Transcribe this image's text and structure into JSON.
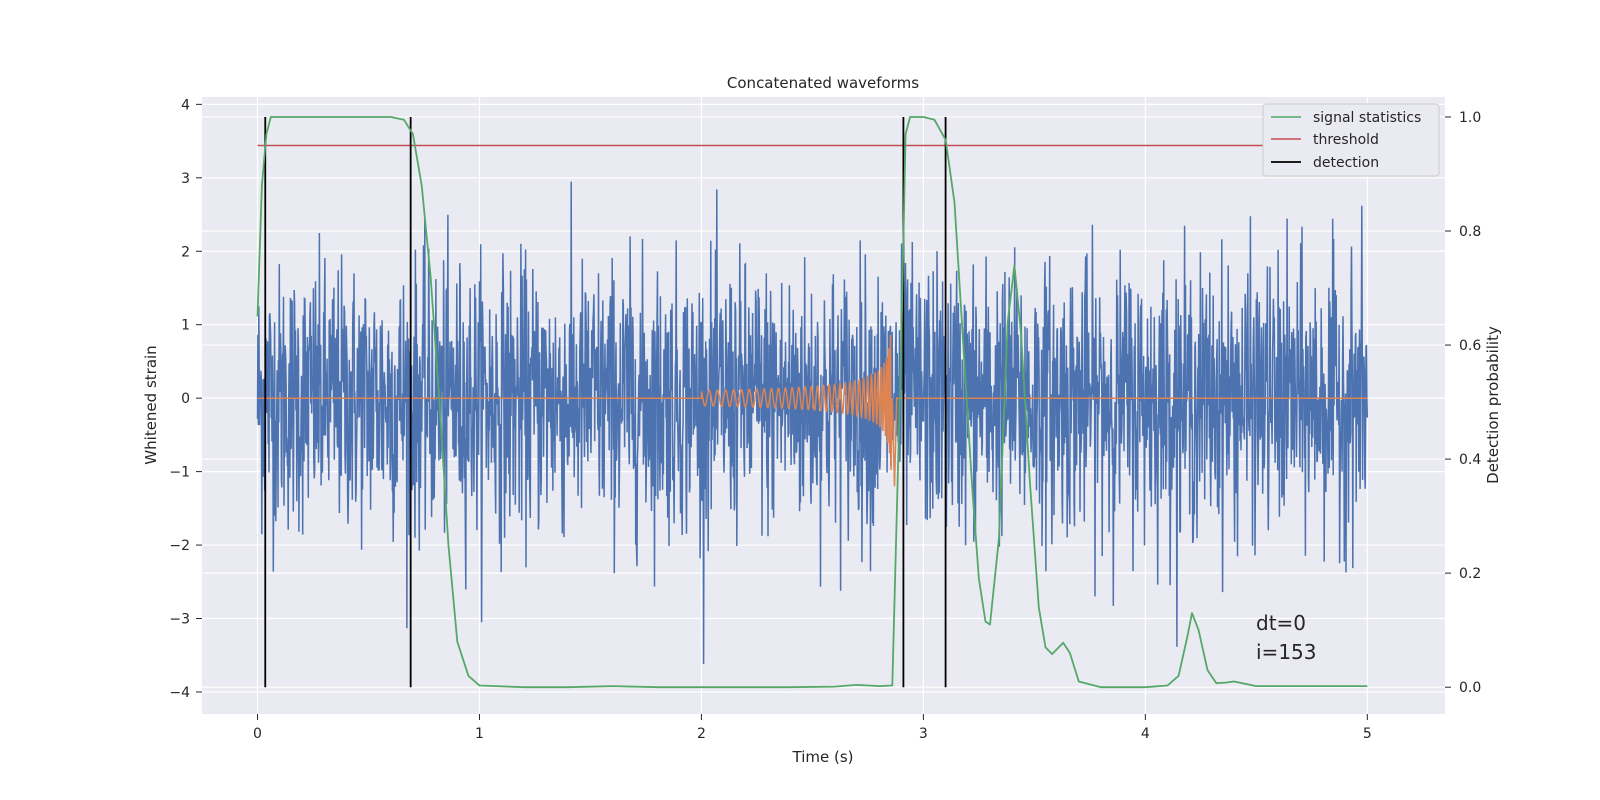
{
  "chart_data": {
    "type": "line",
    "title": "Concatenated waveforms",
    "xlabel": "Time (s)",
    "ylabel": "Whitened strain",
    "y2label": "Detection probability",
    "xlim": [
      -0.25,
      5.35
    ],
    "ylim": [
      -4.3,
      4.1
    ],
    "y2lim": [
      -0.047,
      1.035
    ],
    "xticks": [
      0,
      1,
      2,
      3,
      4,
      5
    ],
    "yticks": [
      -4,
      -3,
      -2,
      -1,
      0,
      1,
      2,
      3,
      4
    ],
    "y2ticks": [
      0.0,
      0.2,
      0.4,
      0.6,
      0.8,
      1.0
    ],
    "grid": true,
    "legend_position": "top-right",
    "series": [
      {
        "name": "",
        "axis": "left",
        "color": "#4c72b0",
        "kind": "noise",
        "x_range": [
          0,
          5
        ],
        "amplitude_std": 0.9,
        "peak_range": [
          -3.7,
          3.35
        ]
      },
      {
        "name": "",
        "axis": "left",
        "color": "#dd8452",
        "kind": "chirp",
        "x_start": 2.0,
        "x_merger": 2.86,
        "x_end": 5.0,
        "peak_amplitude": 1.35
      },
      {
        "name": "signal statistics",
        "axis": "right",
        "color": "#55a868",
        "x": [
          0.0,
          0.02,
          0.04,
          0.06,
          0.08,
          0.1,
          0.2,
          0.3,
          0.4,
          0.5,
          0.6,
          0.66,
          0.7,
          0.74,
          0.78,
          0.82,
          0.86,
          0.9,
          0.95,
          1.0,
          1.2,
          1.4,
          1.6,
          1.8,
          2.0,
          2.2,
          2.4,
          2.6,
          2.7,
          2.8,
          2.86,
          2.9,
          2.92,
          2.94,
          2.97,
          3.0,
          3.05,
          3.1,
          3.14,
          3.18,
          3.22,
          3.25,
          3.28,
          3.3,
          3.34,
          3.38,
          3.41,
          3.44,
          3.48,
          3.52,
          3.55,
          3.58,
          3.61,
          3.63,
          3.66,
          3.7,
          3.8,
          4.0,
          4.1,
          4.15,
          4.19,
          4.21,
          4.24,
          4.28,
          4.32,
          4.36,
          4.4,
          4.5,
          5.0
        ],
        "y": [
          0.65,
          0.88,
          0.97,
          1.0,
          1.0,
          1.0,
          1.0,
          1.0,
          1.0,
          1.0,
          1.0,
          0.995,
          0.97,
          0.88,
          0.72,
          0.5,
          0.25,
          0.08,
          0.02,
          0.003,
          0.0,
          0.0,
          0.002,
          0.0,
          0.0,
          0.0,
          0.0,
          0.001,
          0.004,
          0.002,
          0.003,
          0.6,
          0.97,
          1.0,
          1.0,
          1.0,
          0.995,
          0.96,
          0.85,
          0.6,
          0.35,
          0.19,
          0.115,
          0.11,
          0.26,
          0.64,
          0.74,
          0.62,
          0.36,
          0.14,
          0.07,
          0.058,
          0.07,
          0.078,
          0.06,
          0.01,
          0.0,
          0.0,
          0.003,
          0.02,
          0.09,
          0.13,
          0.1,
          0.03,
          0.007,
          0.008,
          0.01,
          0.002,
          0.002
        ]
      },
      {
        "name": "threshold",
        "axis": "right",
        "color": "#c44e52",
        "x": [
          0,
          5.1
        ],
        "y": [
          0.95,
          0.95
        ]
      }
    ],
    "detections": {
      "name": "detection",
      "color": "#000000",
      "x": [
        0.035,
        0.69,
        2.91,
        3.1
      ],
      "y_range": [
        0.0,
        1.0
      ]
    },
    "annotations": {
      "line1": "dt=0",
      "line2": "i=153"
    }
  }
}
